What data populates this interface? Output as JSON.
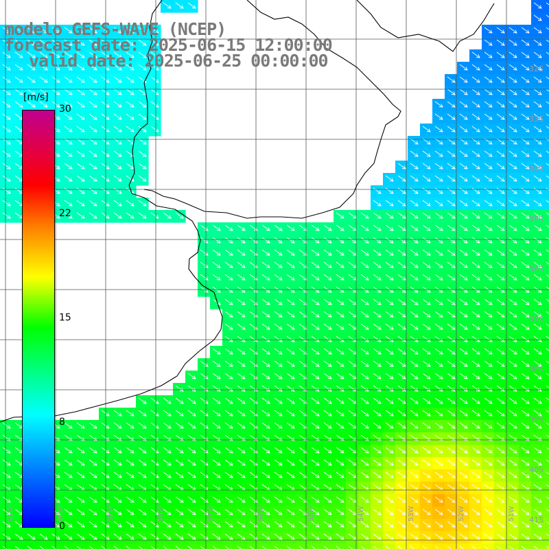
{
  "title_lines": [
    "modelo GEFS-WAVE (NCEP)",
    "forecast date: 2025-06-15 12:00:00",
    "valid date: 2025-06-25 00:00:00"
  ],
  "colorbar": {
    "unit": "[m/s]",
    "ticks": [
      "30",
      "22",
      "15",
      "8",
      "0"
    ],
    "colors": [
      "#0000ff",
      "#0080ff",
      "#00ffff",
      "#00ff00",
      "#ffff00",
      "#ff8000",
      "#ff0000",
      "#c00090"
    ]
  },
  "lat_labels": [
    "32S",
    "33S",
    "34S",
    "35S",
    "36S",
    "37S",
    "38S",
    "39S",
    "40S",
    "41S"
  ],
  "lon_labels": [
    "61W",
    "60W",
    "59W",
    "58W",
    "57W",
    "56W",
    "55W",
    "54W",
    "53W",
    "52W",
    "51W"
  ],
  "wind_direction": "from northwest",
  "colors": {
    "land": "#ffffff",
    "coast": "#000000",
    "grid": "#555555",
    "arrow": "#ffffff",
    "title": "#7a7a7a"
  }
}
